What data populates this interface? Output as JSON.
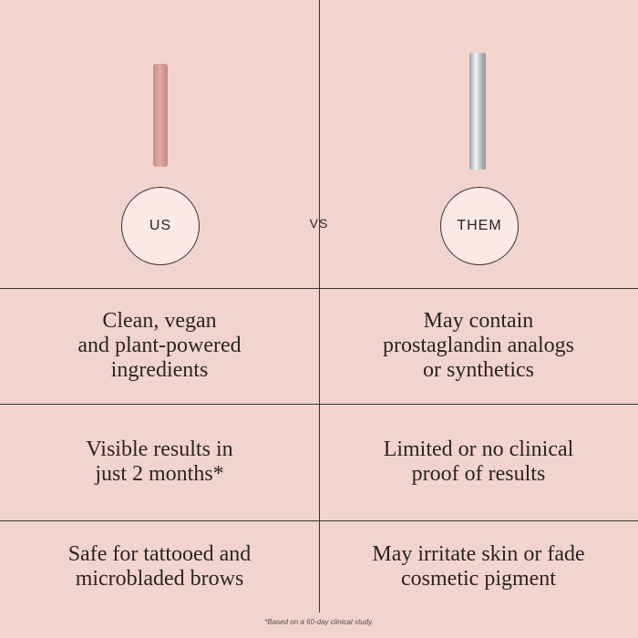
{
  "header": {
    "left_label": "US",
    "middle_label": "VS",
    "right_label": "THEM"
  },
  "rows": [
    {
      "us": [
        "Clean, vegan",
        "and plant-powered",
        "ingredients"
      ],
      "them": [
        "May contain",
        "prostaglandin analogs",
        "or synthetics"
      ]
    },
    {
      "us": [
        "Visible results in",
        "just 2 months*"
      ],
      "them": [
        "Limited or no clinical",
        "proof of results"
      ]
    },
    {
      "us": [
        "Safe for tattooed and",
        "microbladed brows"
      ],
      "them": [
        "May irritate skin or fade",
        "cosmetic pigment"
      ]
    }
  ],
  "footnote": "*Based on a 60-day clinical study."
}
